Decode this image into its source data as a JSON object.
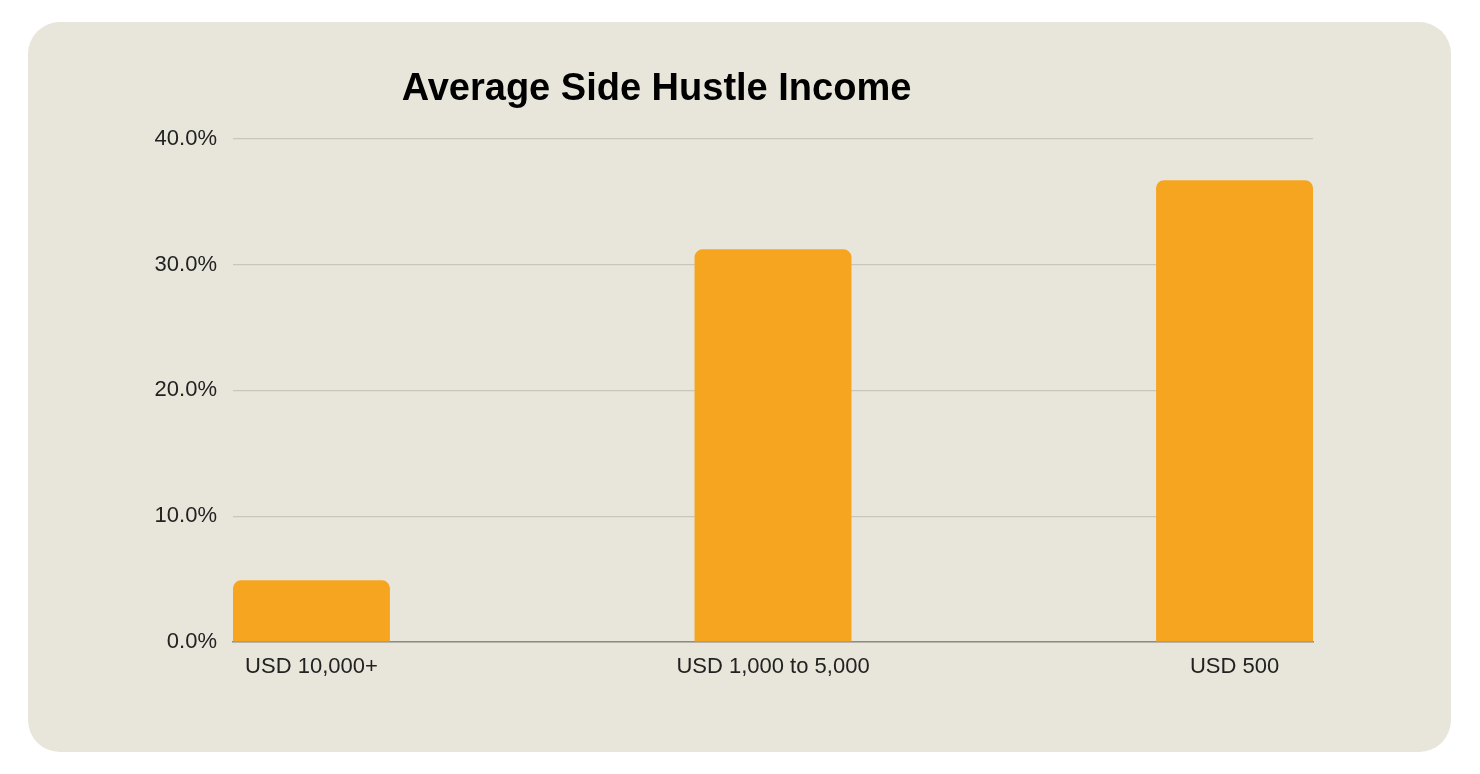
{
  "chart_data": {
    "type": "bar",
    "title": "Average Side Hustle Income",
    "categories": [
      "USD 10,000+",
      "USD 1,000 to 5,000",
      "USD 500"
    ],
    "values": [
      4.9,
      31.2,
      36.7
    ],
    "color": "#f6a521",
    "ylim": [
      0,
      40
    ],
    "yticks": [
      {
        "value": 0,
        "label": "0.0%"
      },
      {
        "value": 10,
        "label": "10.0%"
      },
      {
        "value": 20,
        "label": "20.0%"
      },
      {
        "value": 30,
        "label": "30.0%"
      },
      {
        "value": 40,
        "label": "40.0%"
      }
    ],
    "grid": "y"
  }
}
